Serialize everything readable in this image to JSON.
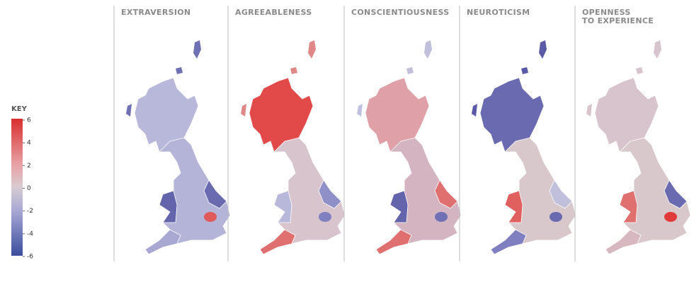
{
  "key": {
    "title": "KEY",
    "ticks": [
      6,
      4,
      2,
      0,
      -2,
      -4,
      -6
    ]
  },
  "panels": [
    {
      "title": [
        "EXTRAVERSION"
      ]
    },
    {
      "title": [
        "AGREEABLENESS"
      ]
    },
    {
      "title": [
        "CONSCIENTIOUSNESS"
      ]
    },
    {
      "title": [
        "NEUROTICISM"
      ]
    },
    {
      "title": [
        "OPENNESS",
        "TO EXPERIENCE"
      ]
    }
  ]
}
